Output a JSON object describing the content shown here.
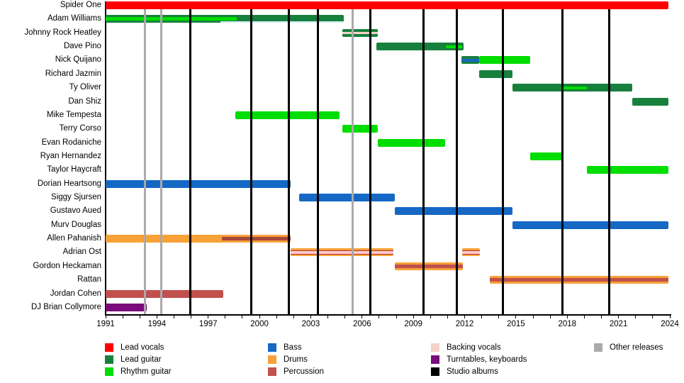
{
  "colors": {
    "lead_vocals": "#fe0000",
    "lead_guitar": "#17803d",
    "rhythm_guitar": "#00dd00",
    "bass": "#1568c4",
    "drums": "#f8a137",
    "percussion": "#c0504d",
    "backing_vocals": "#f5d3c8",
    "turntables_keyboards": "#7a0b7a",
    "studio_albums": "#000000",
    "other_releases": "#aaaaaa"
  },
  "legend": {
    "items": [
      {
        "label": "Lead vocals",
        "role": "lead_vocals",
        "col": 0,
        "row": 0
      },
      {
        "label": "Lead guitar",
        "role": "lead_guitar",
        "col": 0,
        "row": 1
      },
      {
        "label": "Rhythm guitar",
        "role": "rhythm_guitar",
        "col": 0,
        "row": 2
      },
      {
        "label": "Bass",
        "role": "bass",
        "col": 1,
        "row": 0
      },
      {
        "label": "Drums",
        "role": "drums",
        "col": 1,
        "row": 1
      },
      {
        "label": "Percussion",
        "role": "percussion",
        "col": 1,
        "row": 2
      },
      {
        "label": "Backing vocals",
        "role": "backing_vocals",
        "col": 2,
        "row": 0
      },
      {
        "label": "Turntables, keyboards",
        "role": "turntables_keyboards",
        "col": 2,
        "row": 1
      },
      {
        "label": "Studio albums",
        "role": "studio_albums",
        "col": 2,
        "row": 2
      },
      {
        "label": "Other releases",
        "role": "other_releases",
        "col": 3,
        "row": 0
      }
    ]
  },
  "chart_data": {
    "type": "timeline",
    "x_axis": {
      "min": 1991,
      "max": 2024,
      "tick_every_years": 1,
      "label_every_years": 3,
      "tick_labels": [
        "1991",
        "1994",
        "1997",
        "2000",
        "2003",
        "2006",
        "2009",
        "2012",
        "2015",
        "2018",
        "2021",
        "2024"
      ]
    },
    "release_lines": {
      "studio_albums": [
        1995.95,
        1999.5,
        2001.7,
        2003.4,
        2006.5,
        2009.6,
        2011.55,
        2014.25,
        2017.7,
        2020.45
      ],
      "other_releases": [
        1993.3,
        1994.25,
        2005.45
      ]
    },
    "members": [
      {
        "name": "Spider One",
        "segments": [
          {
            "start": 1991,
            "end": 2023.9,
            "role": "lead_vocals"
          }
        ]
      },
      {
        "name": "Adam Williams",
        "segments": [
          {
            "start": 1991,
            "end": 2004.95,
            "role": "lead_guitar",
            "core": {
              "start": 1991,
              "end": 1998.65,
              "role": "rhythm_guitar",
              "h": 5
            },
            "underline": {
              "start": 1997.7,
              "end": 2004.95,
              "hex": "#cfeef8"
            }
          }
        ]
      },
      {
        "name": "Johnny Rock Heatley",
        "segments": [
          {
            "start": 2004.85,
            "end": 2006.9,
            "role": "lead_guitar",
            "core": {
              "start": 2004.85,
              "end": 2006.9,
              "role": "backing_vocals",
              "h": 3
            }
          }
        ]
      },
      {
        "name": "Dave Pino",
        "segments": [
          {
            "start": 2006.85,
            "end": 2011.95,
            "role": "lead_guitar",
            "core": {
              "start": 2010.9,
              "end": 2011.85,
              "role": "rhythm_guitar",
              "h": 4
            }
          }
        ]
      },
      {
        "name": "Nick Quijano",
        "segments": [
          {
            "start": 2011.8,
            "end": 2012.85,
            "role": "lead_guitar",
            "core": {
              "start": 2011.8,
              "end": 2012.85,
              "role": "bass",
              "h": 4
            }
          },
          {
            "start": 2012.85,
            "end": 2015.85,
            "role": "rhythm_guitar"
          }
        ]
      },
      {
        "name": "Richard Jazmin",
        "segments": [
          {
            "start": 2012.85,
            "end": 2014.8,
            "role": "lead_guitar"
          }
        ]
      },
      {
        "name": "Ty Oliver",
        "segments": [
          {
            "start": 2014.8,
            "end": 2021.8,
            "role": "lead_guitar",
            "core": {
              "start": 2017.8,
              "end": 2019.15,
              "role": "rhythm_guitar",
              "h": 4
            }
          }
        ]
      },
      {
        "name": "Dan Shiz",
        "segments": [
          {
            "start": 2021.8,
            "end": 2023.9,
            "role": "lead_guitar"
          }
        ]
      },
      {
        "name": "Mike Tempesta",
        "segments": [
          {
            "start": 1998.6,
            "end": 2004.7,
            "role": "rhythm_guitar"
          }
        ]
      },
      {
        "name": "Terry Corso",
        "segments": [
          {
            "start": 2004.85,
            "end": 2006.9,
            "role": "rhythm_guitar"
          }
        ]
      },
      {
        "name": "Evan Rodaniche",
        "segments": [
          {
            "start": 2006.9,
            "end": 2010.85,
            "role": "rhythm_guitar"
          }
        ]
      },
      {
        "name": "Ryan Hernandez",
        "segments": [
          {
            "start": 2015.85,
            "end": 2017.8,
            "role": "rhythm_guitar"
          }
        ]
      },
      {
        "name": "Taylor Haycraft",
        "segments": [
          {
            "start": 2019.15,
            "end": 2023.9,
            "role": "rhythm_guitar"
          }
        ]
      },
      {
        "name": "Dorian Heartsong",
        "segments": [
          {
            "start": 1991,
            "end": 2001.8,
            "role": "bass"
          }
        ]
      },
      {
        "name": "Siggy Sjursen",
        "segments": [
          {
            "start": 2002.3,
            "end": 2007.9,
            "role": "bass"
          }
        ]
      },
      {
        "name": "Gustavo Aued",
        "segments": [
          {
            "start": 2007.9,
            "end": 2014.8,
            "role": "bass"
          }
        ]
      },
      {
        "name": "Murv Douglas",
        "segments": [
          {
            "start": 2014.8,
            "end": 2023.9,
            "role": "bass"
          }
        ]
      },
      {
        "name": "Allen Pahanish",
        "segments": [
          {
            "start": 1991,
            "end": 2001.8,
            "role": "drums",
            "core": {
              "start": 1997.8,
              "end": 2001.8,
              "role": "percussion",
              "hex": "#a6493a",
              "h": 5
            }
          }
        ]
      },
      {
        "name": "Adrian Ost",
        "segments": [
          {
            "start": 2001.8,
            "end": 2007.85,
            "role": "drums",
            "core": {
              "start": 2001.8,
              "end": 2007.85,
              "role": "backing_vocals",
              "hex": "#ffc9ce",
              "h": 4,
              "border": "#b03a2e"
            }
          },
          {
            "start": 2011.85,
            "end": 2012.9,
            "role": "drums",
            "core": {
              "start": 2011.85,
              "end": 2012.9,
              "role": "backing_vocals",
              "hex": "#ffc9ce",
              "h": 4,
              "border": "#b03a2e"
            }
          }
        ]
      },
      {
        "name": "Gordon Heckaman",
        "segments": [
          {
            "start": 2007.9,
            "end": 2011.9,
            "role": "drums",
            "core": {
              "start": 2007.9,
              "end": 2011.9,
              "role": "percussion",
              "h": 5
            }
          }
        ]
      },
      {
        "name": "Rattan",
        "segments": [
          {
            "start": 2013.45,
            "end": 2023.9,
            "role": "drums",
            "core": {
              "start": 2013.45,
              "end": 2023.9,
              "role": "percussion",
              "h": 5
            }
          }
        ]
      },
      {
        "name": "Jordan Cohen",
        "segments": [
          {
            "start": 1991,
            "end": 1997.9,
            "role": "percussion"
          }
        ]
      },
      {
        "name": "DJ Brian Collymore",
        "segments": [
          {
            "start": 1991,
            "end": 1993.4,
            "role": "turntables_keyboards"
          }
        ]
      }
    ]
  }
}
